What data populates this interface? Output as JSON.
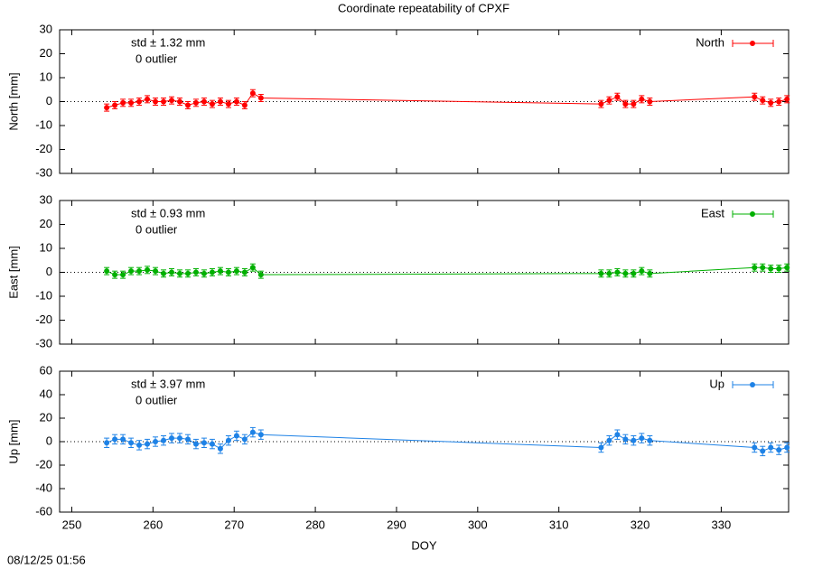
{
  "title": "Coordinate repeatability of CPXF",
  "timestamp": "08/12/25 01:56",
  "chart_data": [
    {
      "type": "line",
      "ylabel": "North [mm]",
      "annotations": [
        "std ± 1.32 mm",
        "0 outlier"
      ],
      "xlim": [
        248.5,
        338.3
      ],
      "xticks": [
        250,
        260,
        270,
        280,
        290,
        300,
        310,
        320,
        330
      ],
      "xticklabels": false,
      "ylim": [
        -30,
        30
      ],
      "yticks": [
        -30,
        -20,
        -10,
        0,
        10,
        20,
        30
      ],
      "zero_line": true,
      "legend": "top-right",
      "x": [
        254.3,
        255.3,
        256.3,
        257.3,
        258.3,
        259.3,
        260.3,
        261.3,
        262.3,
        263.3,
        264.3,
        265.3,
        266.3,
        267.3,
        268.3,
        269.3,
        270.3,
        271.3,
        272.3,
        273.3,
        315.2,
        316.2,
        317.2,
        318.2,
        319.2,
        320.2,
        321.2,
        334.1,
        335.1,
        336.1,
        337.1,
        338.1
      ],
      "series": [
        {
          "name": "North",
          "color": "#ff0000",
          "values": [
            -2.5,
            -1.5,
            -0.5,
            -0.5,
            0,
            1,
            0,
            0,
            0.5,
            0,
            -1.5,
            -0.5,
            0,
            -1,
            0,
            -1,
            0,
            -1.5,
            3.5,
            1.5,
            -1,
            0.5,
            2,
            -1,
            -1,
            1,
            0,
            2,
            0.5,
            -0.5,
            0,
            1
          ],
          "errors": [
            1.5,
            1.5,
            1.5,
            1.5,
            1.5,
            1.5,
            1.5,
            1.5,
            1.5,
            1.5,
            1.5,
            1.5,
            1.5,
            1.5,
            1.5,
            1.5,
            1.5,
            1.5,
            1.5,
            1.5,
            1.5,
            1.5,
            1.5,
            1.5,
            1.5,
            1.5,
            1.5,
            1.5,
            1.5,
            1.5,
            1.5,
            1.5
          ]
        }
      ]
    },
    {
      "type": "line",
      "ylabel": "East [mm]",
      "annotations": [
        "std ± 0.93 mm",
        "0 outlier"
      ],
      "xlim": [
        248.5,
        338.3
      ],
      "xticks": [
        250,
        260,
        270,
        280,
        290,
        300,
        310,
        320,
        330
      ],
      "xticklabels": false,
      "ylim": [
        -30,
        30
      ],
      "yticks": [
        -30,
        -20,
        -10,
        0,
        10,
        20,
        30
      ],
      "zero_line": true,
      "legend": "top-right",
      "x": [
        254.3,
        255.3,
        256.3,
        257.3,
        258.3,
        259.3,
        260.3,
        261.3,
        262.3,
        263.3,
        264.3,
        265.3,
        266.3,
        267.3,
        268.3,
        269.3,
        270.3,
        271.3,
        272.3,
        273.3,
        315.2,
        316.2,
        317.2,
        318.2,
        319.2,
        320.2,
        321.2,
        334.1,
        335.1,
        336.1,
        337.1,
        338.1
      ],
      "series": [
        {
          "name": "East",
          "color": "#00b000",
          "values": [
            0.5,
            -1,
            -1,
            0.5,
            0.5,
            1,
            0.5,
            -0.5,
            0,
            -0.5,
            -0.5,
            0,
            -0.5,
            0,
            0.5,
            0,
            0.5,
            0,
            2,
            -1,
            -0.5,
            -0.5,
            0,
            -0.5,
            -0.5,
            0.5,
            -0.5,
            2,
            2,
            1.5,
            1.5,
            2
          ],
          "errors": [
            1.5,
            1.5,
            1.5,
            1.5,
            1.5,
            1.5,
            1.5,
            1.5,
            1.5,
            1.5,
            1.5,
            1.5,
            1.5,
            1.5,
            1.5,
            1.5,
            1.5,
            1.5,
            1.5,
            1.5,
            1.5,
            1.5,
            1.5,
            1.5,
            1.5,
            1.5,
            1.5,
            1.5,
            1.5,
            1.5,
            1.5,
            1.5
          ]
        }
      ]
    },
    {
      "type": "line",
      "ylabel": "Up [mm]",
      "xlabel": "DOY",
      "annotations": [
        "std ± 3.97 mm",
        "0 outlier"
      ],
      "xlim": [
        248.5,
        338.3
      ],
      "xticks": [
        250,
        260,
        270,
        280,
        290,
        300,
        310,
        320,
        330
      ],
      "xticklabels": true,
      "ylim": [
        -60,
        60
      ],
      "yticks": [
        -60,
        -40,
        -20,
        0,
        20,
        40,
        60
      ],
      "zero_line": true,
      "legend": "top-right",
      "x": [
        254.3,
        255.3,
        256.3,
        257.3,
        258.3,
        259.3,
        260.3,
        261.3,
        262.3,
        263.3,
        264.3,
        265.3,
        266.3,
        267.3,
        268.3,
        269.3,
        270.3,
        271.3,
        272.3,
        273.3,
        315.2,
        316.2,
        317.2,
        318.2,
        319.2,
        320.2,
        321.2,
        334.1,
        335.1,
        336.1,
        337.1,
        338.1
      ],
      "series": [
        {
          "name": "Up",
          "color": "#1e82e6",
          "values": [
            -1,
            2,
            2,
            -1,
            -3,
            -2,
            0,
            1,
            3,
            3,
            2,
            -2,
            -1,
            -2,
            -6,
            1,
            5,
            2,
            8,
            6,
            -5,
            1,
            6,
            2,
            1,
            3,
            1,
            -5,
            -8,
            -5,
            -7,
            -5
          ],
          "errors": [
            4,
            4,
            4,
            4,
            4,
            4,
            4,
            4,
            4,
            4,
            4,
            4,
            4,
            4,
            4,
            4,
            4,
            4,
            4,
            4,
            4,
            4,
            4,
            4,
            4,
            4,
            4,
            4,
            4,
            4,
            4,
            4
          ]
        }
      ]
    }
  ]
}
